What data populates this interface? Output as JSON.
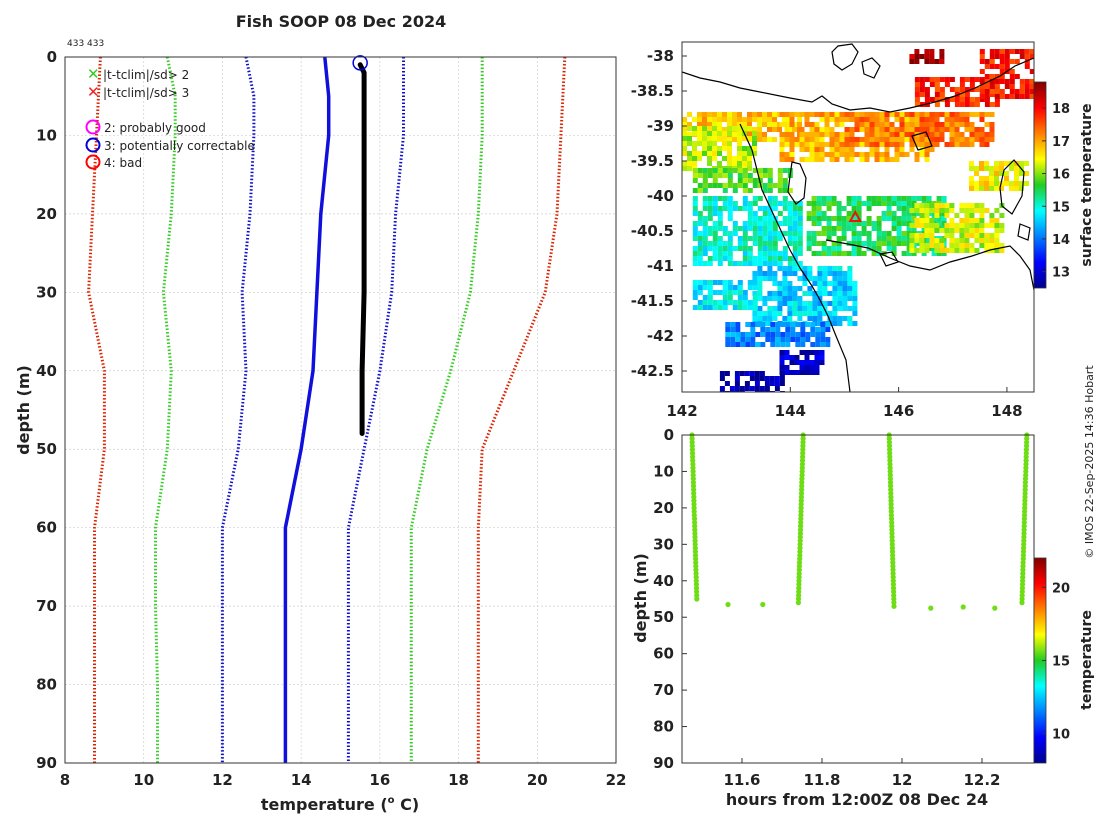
{
  "title": "Fish SOOP 08 Dec 2024",
  "counts_label": "433 433",
  "credit": "© IMOS 22-Sep-2025 14:36 Hobart",
  "colors": {
    "mean": "#1010dd",
    "sd1": "#1010cc",
    "sd2": "#33cc22",
    "sd3": "#dd2200",
    "profile": "#000000",
    "flag_good": "#ff00ff",
    "flag_corr": "#0000dd",
    "flag_bad": "#ff0000",
    "point": "#44dd11"
  },
  "legend": {
    "cross_green": "|t-tclim|/sd> 2",
    "cross_red": "|t-tclim|/sd> 3",
    "flag2": "2: probably good",
    "flag3": "3: potentially correctable",
    "flag4": "4: bad"
  },
  "chart_data": [
    {
      "id": "profile",
      "type": "line",
      "title": "Fish SOOP 08 Dec 2024",
      "xlabel": "temperature (",
      "xlabel_sup": "o",
      "xlabel_tail": " C)",
      "ylabel": "depth (m)",
      "xlim": [
        8,
        22
      ],
      "ylim": [
        0,
        90
      ],
      "y_reversed": true,
      "xticks": [
        8,
        10,
        12,
        14,
        16,
        18,
        20,
        22
      ],
      "yticks": [
        0,
        10,
        20,
        30,
        40,
        50,
        60,
        70,
        80,
        90
      ],
      "grid": true,
      "series": [
        {
          "name": "climatology mean",
          "style": "solid",
          "color": "#1010dd",
          "points": [
            [
              14.6,
              0
            ],
            [
              14.7,
              5
            ],
            [
              14.7,
              10
            ],
            [
              14.5,
              20
            ],
            [
              14.4,
              30
            ],
            [
              14.3,
              40
            ],
            [
              14.0,
              50
            ],
            [
              13.6,
              60
            ],
            [
              13.6,
              70
            ],
            [
              13.6,
              80
            ],
            [
              13.6,
              90
            ]
          ]
        },
        {
          "name": "mean - 1sd",
          "style": "dotted",
          "color": "#1010cc",
          "points": [
            [
              12.6,
              0
            ],
            [
              12.8,
              5
            ],
            [
              12.8,
              10
            ],
            [
              12.7,
              20
            ],
            [
              12.5,
              30
            ],
            [
              12.6,
              40
            ],
            [
              12.4,
              50
            ],
            [
              12.0,
              60
            ],
            [
              12.0,
              70
            ],
            [
              12.0,
              80
            ],
            [
              12.0,
              90
            ]
          ]
        },
        {
          "name": "mean + 1sd",
          "style": "dotted",
          "color": "#1010cc",
          "points": [
            [
              16.6,
              0
            ],
            [
              16.6,
              10
            ],
            [
              16.4,
              20
            ],
            [
              16.3,
              30
            ],
            [
              16.0,
              40
            ],
            [
              15.6,
              50
            ],
            [
              15.2,
              60
            ],
            [
              15.2,
              70
            ],
            [
              15.2,
              80
            ],
            [
              15.2,
              90
            ]
          ]
        },
        {
          "name": "mean - 2sd",
          "style": "dotted",
          "color": "#33cc22",
          "points": [
            [
              10.6,
              0
            ],
            [
              10.8,
              5
            ],
            [
              10.8,
              10
            ],
            [
              10.7,
              20
            ],
            [
              10.5,
              30
            ],
            [
              10.7,
              40
            ],
            [
              10.6,
              50
            ],
            [
              10.3,
              60
            ],
            [
              10.3,
              70
            ],
            [
              10.35,
              80
            ],
            [
              10.35,
              90
            ]
          ]
        },
        {
          "name": "mean + 2sd",
          "style": "dotted",
          "color": "#33cc22",
          "points": [
            [
              18.6,
              0
            ],
            [
              18.6,
              10
            ],
            [
              18.5,
              20
            ],
            [
              18.3,
              30
            ],
            [
              17.8,
              40
            ],
            [
              17.2,
              50
            ],
            [
              16.8,
              60
            ],
            [
              16.8,
              70
            ],
            [
              16.8,
              80
            ],
            [
              16.8,
              90
            ]
          ]
        },
        {
          "name": "mean - 3sd",
          "style": "dotted",
          "color": "#dd2200",
          "points": [
            [
              8.9,
              0
            ],
            [
              8.8,
              10
            ],
            [
              8.7,
              20
            ],
            [
              8.6,
              30
            ],
            [
              9.0,
              40
            ],
            [
              9.0,
              50
            ],
            [
              8.75,
              60
            ],
            [
              8.75,
              70
            ],
            [
              8.75,
              80
            ],
            [
              8.75,
              90
            ]
          ]
        },
        {
          "name": "mean + 3sd",
          "style": "dotted",
          "color": "#dd2200",
          "points": [
            [
              20.7,
              0
            ],
            [
              20.6,
              10
            ],
            [
              20.5,
              20
            ],
            [
              20.2,
              30
            ],
            [
              19.4,
              40
            ],
            [
              18.6,
              50
            ],
            [
              18.5,
              60
            ],
            [
              18.5,
              70
            ],
            [
              18.5,
              80
            ],
            [
              18.5,
              90
            ]
          ]
        },
        {
          "name": "observed profile",
          "style": "thick",
          "color": "#000000",
          "points": [
            [
              15.5,
              1
            ],
            [
              15.6,
              2
            ],
            [
              15.6,
              10
            ],
            [
              15.6,
              20
            ],
            [
              15.6,
              30
            ],
            [
              15.55,
              40
            ],
            [
              15.55,
              48
            ]
          ]
        }
      ],
      "flag_marker": {
        "temperature": 15.5,
        "depth": 1,
        "flag": 3
      }
    },
    {
      "id": "map",
      "type": "heatmap",
      "colorbar_label": "surface temperature",
      "xticks": [
        142,
        144,
        146,
        148
      ],
      "yticks": [
        -38,
        -38.5,
        -39,
        -39.5,
        -40,
        -40.5,
        -41,
        -41.5,
        -42,
        -42.5
      ],
      "xlim": [
        142,
        148.5
      ],
      "ylim": [
        -42.8,
        -37.8
      ],
      "clim": [
        12.5,
        18.8
      ],
      "cticks": [
        13,
        14,
        15,
        16,
        17,
        18
      ],
      "marker": {
        "lon": 145.2,
        "lat": -40.3
      },
      "regions": [
        {
          "lon": [
            142.0,
            144.2
          ],
          "lat": [
            -39.2,
            -38.8
          ],
          "value": 16.8
        },
        {
          "lon": [
            143.8,
            146.6
          ],
          "lat": [
            -39.5,
            -38.8
          ],
          "value": 16.9
        },
        {
          "lon": [
            145.0,
            147.7
          ],
          "lat": [
            -39.3,
            -38.8
          ],
          "value": 17.3
        },
        {
          "lon": [
            146.3,
            147.8
          ],
          "lat": [
            -38.7,
            -38.3
          ],
          "value": 17.8
        },
        {
          "lon": [
            147.5,
            148.5
          ],
          "lat": [
            -38.6,
            -37.9
          ],
          "value": 17.9
        },
        {
          "lon": [
            146.2,
            146.8
          ],
          "lat": [
            -38.1,
            -37.9
          ],
          "value": 18.6
        },
        {
          "lon": [
            142.0,
            143.3
          ],
          "lat": [
            -39.6,
            -39.0
          ],
          "value": 16.2
        },
        {
          "lon": [
            142.2,
            144.0
          ],
          "lat": [
            -39.9,
            -39.6
          ],
          "value": 15.8
        },
        {
          "lon": [
            142.2,
            144.2
          ],
          "lat": [
            -41.0,
            -40.0
          ],
          "value": 15.0
        },
        {
          "lon": [
            144.3,
            146.8
          ],
          "lat": [
            -40.8,
            -40.0
          ],
          "value": 15.5
        },
        {
          "lon": [
            146.2,
            147.9
          ],
          "lat": [
            -40.8,
            -40.1
          ],
          "value": 16.3
        },
        {
          "lon": [
            147.3,
            148.4
          ],
          "lat": [
            -39.9,
            -39.5
          ],
          "value": 16.5
        },
        {
          "lon": [
            143.3,
            145.2
          ],
          "lat": [
            -41.8,
            -41.0
          ],
          "value": 14.6
        },
        {
          "lon": [
            142.2,
            143.4
          ],
          "lat": [
            -41.6,
            -41.2
          ],
          "value": 14.8
        },
        {
          "lon": [
            142.8,
            144.7
          ],
          "lat": [
            -42.1,
            -41.8
          ],
          "value": 14.1
        },
        {
          "lon": [
            143.8,
            144.6
          ],
          "lat": [
            -42.5,
            -42.2
          ],
          "value": 12.9
        },
        {
          "lon": [
            142.7,
            143.9
          ],
          "lat": [
            -42.8,
            -42.5
          ],
          "value": 12.6
        }
      ]
    },
    {
      "id": "timeseries",
      "type": "scatter",
      "xlabel": "hours from 12:00Z 08 Dec 24",
      "ylabel": "depth (m)",
      "colorbar_label": "temperature",
      "xlim": [
        11.45,
        12.33
      ],
      "ylim": [
        0,
        90
      ],
      "y_reversed": true,
      "xticks": [
        11.6,
        11.8,
        12,
        12.2
      ],
      "yticks": [
        0,
        10,
        20,
        30,
        40,
        50,
        60,
        70,
        80,
        90
      ],
      "clim": [
        8,
        22
      ],
      "cticks": [
        10,
        15,
        20
      ],
      "casts": [
        {
          "x_top": 11.475,
          "x_bottom": 11.487,
          "depth_max": 45
        },
        {
          "x_top": 11.753,
          "x_bottom": 11.741,
          "depth_max": 46
        },
        {
          "x_top": 11.968,
          "x_bottom": 11.98,
          "depth_max": 47
        },
        {
          "x_top": 12.312,
          "x_bottom": 12.3,
          "depth_max": 46
        }
      ],
      "bottom_points": [
        [
          11.565,
          46.5
        ],
        [
          11.652,
          46.5
        ],
        [
          12.072,
          47.5
        ],
        [
          12.153,
          47.2
        ],
        [
          12.232,
          47.5
        ]
      ],
      "point_temperature": 15.6
    }
  ]
}
